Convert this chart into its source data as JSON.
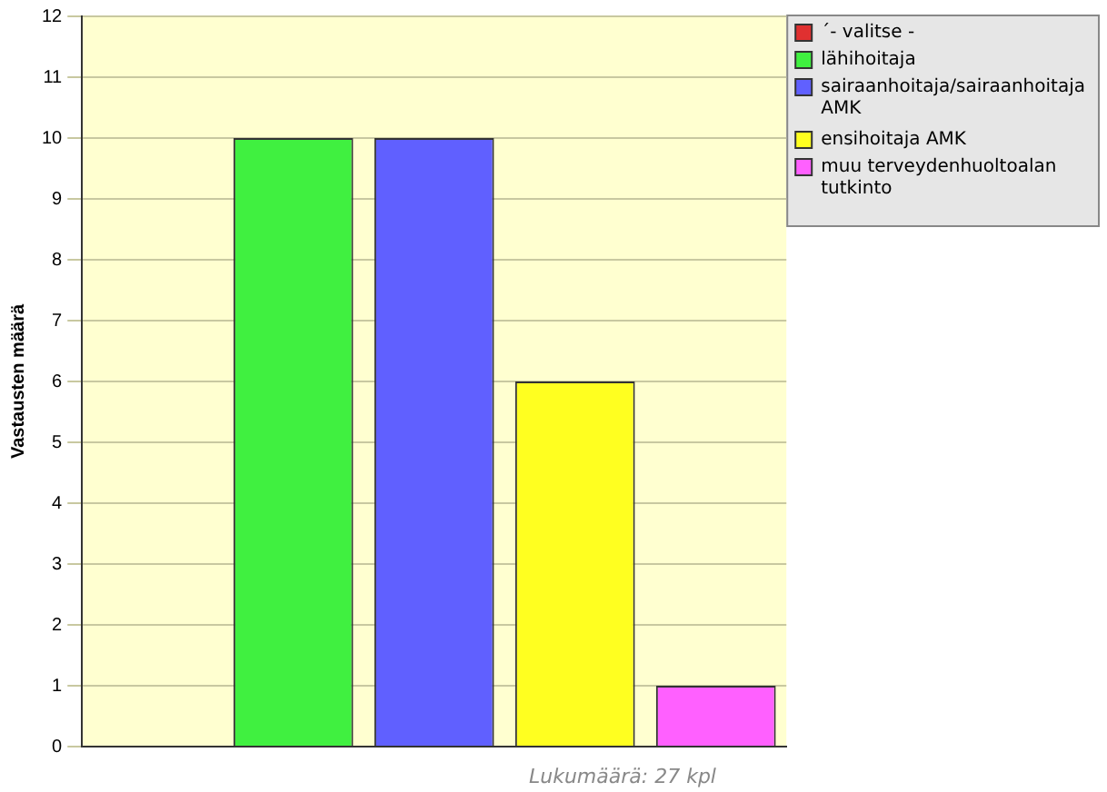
{
  "chart_data": {
    "type": "bar",
    "ylabel": "Vastausten määrä",
    "categories": [
      null,
      null,
      null,
      null,
      null
    ],
    "series": [
      {
        "name": "´- valitse -",
        "color": "#e03030",
        "values": [
          0,
          null,
          null,
          null,
          null
        ]
      },
      {
        "name": "lähihoitaja",
        "color": "#40f040",
        "values": [
          null,
          10,
          null,
          null,
          null
        ]
      },
      {
        "name": "sairaanhoitaja/sairaanhoitaja AMK",
        "color": "#6060ff",
        "values": [
          null,
          null,
          10,
          null,
          null
        ]
      },
      {
        "name": "ensihoitaja AMK",
        "color": "#ffff20",
        "values": [
          null,
          null,
          null,
          6,
          null
        ]
      },
      {
        "name": "muu terveydenhuoltoalan tutkinto",
        "color": "#ff60ff",
        "values": [
          null,
          null,
          null,
          null,
          1
        ]
      }
    ],
    "ylim": [
      0,
      12
    ],
    "yticks": [
      0,
      1,
      2,
      3,
      4,
      5,
      6,
      7,
      8,
      9,
      10,
      11,
      12
    ],
    "grid": "y",
    "legend": "top right",
    "tick_labels": "y",
    "annotations": [
      "Lukumäärä: 27 kpl"
    ]
  }
}
